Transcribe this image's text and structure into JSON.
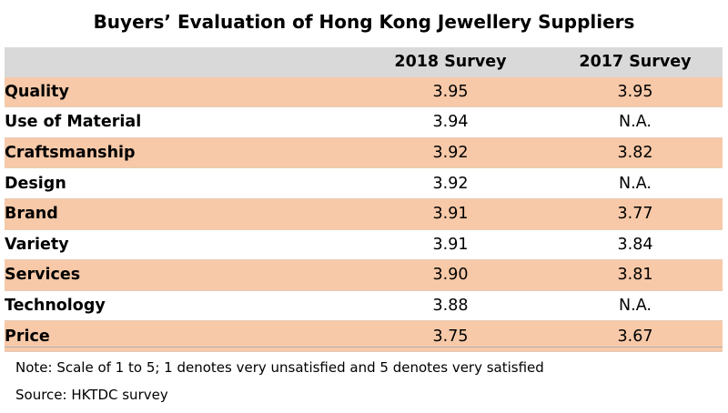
{
  "chart_data": {
    "type": "table",
    "title": "Buyers’ Evaluation of Hong Kong Jewellery Suppliers",
    "columns": [
      "",
      "2018 Survey",
      "2017 Survey"
    ],
    "rows": [
      {
        "label": "Quality",
        "v2018": "3.95",
        "v2017": "3.95"
      },
      {
        "label": "Use of Material",
        "v2018": "3.94",
        "v2017": "N.A."
      },
      {
        "label": "Craftsmanship",
        "v2018": "3.92",
        "v2017": "3.82"
      },
      {
        "label": "Design",
        "v2018": "3.92",
        "v2017": "N.A."
      },
      {
        "label": "Brand",
        "v2018": "3.91",
        "v2017": "3.77"
      },
      {
        "label": "Variety",
        "v2018": "3.91",
        "v2017": "3.84"
      },
      {
        "label": "Services",
        "v2018": "3.90",
        "v2017": "3.81"
      },
      {
        "label": "Technology",
        "v2018": "3.88",
        "v2017": "N.A."
      },
      {
        "label": "Price",
        "v2018": "3.75",
        "v2017": "3.67"
      }
    ],
    "note": "Note: Scale of 1 to 5; 1 denotes very unsatisfied and 5 denotes very satisfied",
    "source": "Source: HKTDC survey"
  },
  "colors": {
    "header_bg": "#d9d9d9",
    "band_bg": "#f7c9a8",
    "plain_bg": "#ffffff"
  }
}
